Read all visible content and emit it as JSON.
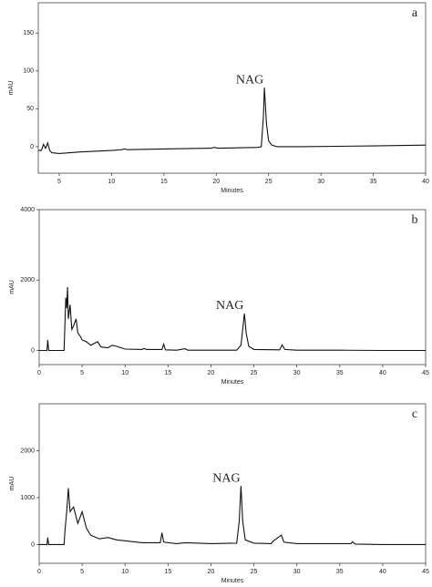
{
  "chart_data": [
    {
      "type": "line",
      "label": "a",
      "annotation": "NAG",
      "x_label": "Minutes",
      "y_label": "mAU",
      "xlim": [
        3,
        40
      ],
      "ylim": [
        -35,
        190
      ],
      "xticks": [
        5,
        10,
        15,
        20,
        25,
        30,
        35,
        40
      ],
      "yticks": [
        0,
        50,
        100,
        150
      ],
      "x": [
        3,
        3.3,
        3.5,
        3.7,
        3.9,
        4.1,
        4.3,
        5,
        7,
        10,
        11,
        11.2,
        11.5,
        15,
        19.5,
        19.8,
        20.2,
        24,
        24.3,
        24.5,
        24.6,
        24.8,
        25,
        25.3,
        25.8,
        28,
        35,
        40
      ],
      "series": [
        {
          "color": "#111111",
          "values": [
            -5,
            -5,
            3,
            -2,
            5,
            -5,
            -8,
            -9,
            -7,
            -5,
            -4,
            -3,
            -4,
            -3,
            -2,
            -1,
            -2,
            -1,
            0,
            40,
            78,
            30,
            8,
            2,
            0,
            0,
            1,
            2
          ]
        }
      ]
    },
    {
      "type": "line",
      "label": "b",
      "annotation": "NAG",
      "x_label": "Minutes",
      "y_label": "mAU",
      "xlim": [
        0,
        45
      ],
      "ylim": [
        -400,
        4000
      ],
      "xticks": [
        0,
        5,
        10,
        15,
        20,
        25,
        30,
        35,
        40,
        45
      ],
      "yticks": [
        0,
        2000,
        4000
      ],
      "x": [
        0,
        0.9,
        1,
        1.1,
        2.9,
        3.0,
        3.1,
        3.2,
        3.3,
        3.4,
        3.6,
        3.8,
        4,
        4.3,
        4.5,
        4.8,
        5,
        5.5,
        6,
        6.8,
        7.2,
        8,
        8.5,
        9,
        10,
        12,
        12.2,
        12.5,
        14.3,
        14.5,
        14.7,
        16,
        17,
        17.3,
        20,
        23,
        23.5,
        23.7,
        23.9,
        24.1,
        24.4,
        25,
        28,
        28.3,
        28.6,
        30,
        35,
        40,
        45
      ],
      "series": [
        {
          "color": "#111111",
          "values": [
            0,
            0,
            300,
            0,
            0,
            800,
            1500,
            1200,
            1800,
            900,
            1300,
            600,
            700,
            900,
            500,
            400,
            300,
            250,
            150,
            250,
            100,
            80,
            150,
            120,
            40,
            30,
            60,
            30,
            30,
            180,
            20,
            10,
            50,
            10,
            10,
            10,
            150,
            600,
            1050,
            500,
            120,
            30,
            20,
            160,
            30,
            10,
            10,
            0,
            0
          ]
        }
      ]
    },
    {
      "type": "line",
      "label": "c",
      "annotation": "NAG",
      "x_label": "Minutes",
      "y_label": "mAU",
      "xlim": [
        0,
        45
      ],
      "ylim": [
        -400,
        3000
      ],
      "xticks": [
        0,
        5,
        10,
        15,
        20,
        25,
        30,
        35,
        40,
        45
      ],
      "yticks": [
        0,
        1000,
        2000
      ],
      "x": [
        0,
        0.9,
        1,
        1.1,
        2.9,
        3.0,
        3.2,
        3.4,
        3.6,
        4,
        4.5,
        5,
        5.5,
        6,
        7,
        8,
        9,
        10,
        12,
        14.1,
        14.3,
        14.5,
        16,
        17,
        20,
        23,
        23.3,
        23.5,
        23.7,
        24,
        25,
        27,
        27.3,
        28.2,
        28.5,
        30,
        36.3,
        36.5,
        36.8,
        40,
        45
      ],
      "series": [
        {
          "color": "#111111",
          "values": [
            0,
            0,
            150,
            0,
            0,
            300,
            700,
            1200,
            700,
            800,
            450,
            700,
            350,
            200,
            120,
            150,
            100,
            80,
            40,
            40,
            250,
            50,
            20,
            40,
            20,
            30,
            500,
            1250,
            500,
            100,
            30,
            20,
            80,
            200,
            50,
            20,
            20,
            60,
            10,
            0,
            0
          ]
        }
      ]
    }
  ]
}
